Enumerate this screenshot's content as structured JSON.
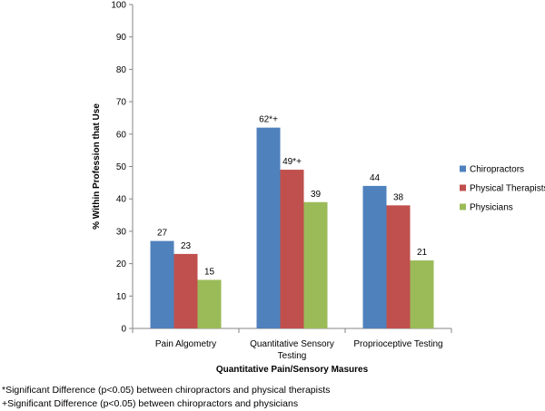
{
  "chart_data": {
    "type": "bar",
    "categories": [
      [
        "Pain Algometry"
      ],
      [
        "Quantitative Sensory",
        "Testing"
      ],
      [
        "Proprioceptive Testing"
      ]
    ],
    "series": [
      {
        "name": "Chiropractors",
        "color": "#4f81bd",
        "values": [
          27,
          62,
          44
        ],
        "labels": [
          "27",
          "62*+",
          "44"
        ]
      },
      {
        "name": "Physical Therapists",
        "color": "#c0504d",
        "values": [
          23,
          49,
          38
        ],
        "labels": [
          "23",
          "49*+",
          "38"
        ]
      },
      {
        "name": "Physicians",
        "color": "#9bbb59",
        "values": [
          15,
          39,
          21
        ],
        "labels": [
          "15",
          "39",
          "21"
        ]
      }
    ],
    "xlabel": "Quantitative Pain/Sensory Masures",
    "ylabel": "% Within Profession that Use",
    "ylim": [
      0,
      100
    ],
    "yticks": [
      0,
      10,
      20,
      30,
      40,
      50,
      60,
      70,
      80,
      90,
      100
    ],
    "grid": false,
    "legend": "right"
  },
  "footnotes": [
    "*Significant Difference (p<0.05) between chiropractors and physical therapists",
    "+Significant Difference (p<0.05) between chiropractors and physicians"
  ]
}
